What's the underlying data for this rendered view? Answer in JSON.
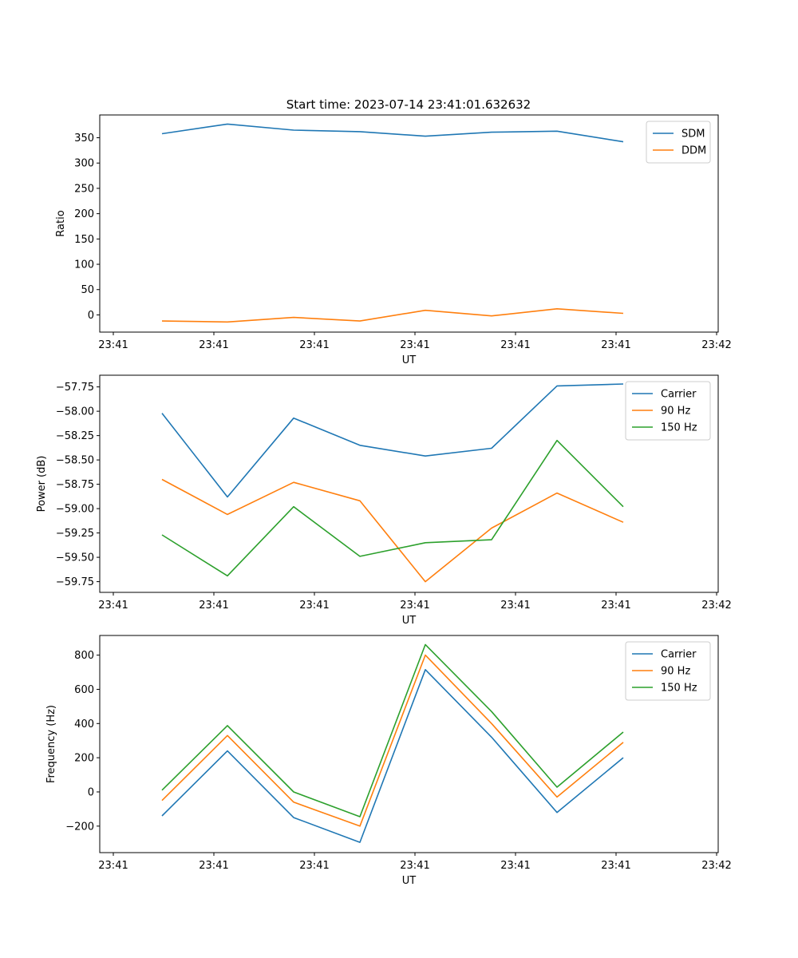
{
  "chart_data": [
    {
      "type": "line",
      "title": "Start time: 2023-07-14 23:41:01.632632",
      "xlabel": "UT",
      "ylabel": "Ratio",
      "x_ticks": [
        "23:41",
        "23:41",
        "23:41",
        "23:41",
        "23:41",
        "23:41",
        "23:42"
      ],
      "ylim": [
        -34,
        395
      ],
      "y_ticks": [
        0,
        50,
        100,
        150,
        200,
        250,
        300,
        350
      ],
      "y_tick_labels": [
        "0",
        "50",
        "100",
        "150",
        "200",
        "250",
        "300",
        "350"
      ],
      "legend": "top-right",
      "series": [
        {
          "name": "SDM",
          "color": "#1f77b4",
          "values": [
            358,
            377,
            365,
            362,
            353,
            361,
            363,
            342
          ]
        },
        {
          "name": "DDM",
          "color": "#ff7f0e",
          "values": [
            -12,
            -14,
            -5,
            -12,
            9,
            -2,
            12,
            3
          ]
        }
      ]
    },
    {
      "type": "line",
      "title": "",
      "xlabel": "UT",
      "ylabel": "Power (dB)",
      "x_ticks": [
        "23:41",
        "23:41",
        "23:41",
        "23:41",
        "23:41",
        "23:41",
        "23:42"
      ],
      "ylim": [
        -59.86,
        -57.63
      ],
      "y_ticks": [
        -59.75,
        -59.5,
        -59.25,
        -59.0,
        -58.75,
        -58.5,
        -58.25,
        -58.0,
        -57.75
      ],
      "y_tick_labels": [
        "−59.75",
        "−59.50",
        "−59.25",
        "−59.00",
        "−58.75",
        "−58.50",
        "−58.25",
        "−58.00",
        "−57.75"
      ],
      "legend": "top-right",
      "series": [
        {
          "name": "Carrier",
          "color": "#1f77b4",
          "values": [
            -58.02,
            -58.88,
            -58.07,
            -58.35,
            -58.46,
            -58.38,
            -57.74,
            -57.72
          ]
        },
        {
          "name": "90 Hz",
          "color": "#ff7f0e",
          "values": [
            -58.7,
            -59.06,
            -58.73,
            -58.92,
            -59.75,
            -59.2,
            -58.84,
            -59.14
          ]
        },
        {
          "name": "150 Hz",
          "color": "#2ca02c",
          "values": [
            -59.27,
            -59.69,
            -58.98,
            -59.49,
            -59.35,
            -59.32,
            -58.3,
            -58.98
          ]
        }
      ]
    },
    {
      "type": "line",
      "title": "",
      "xlabel": "UT",
      "ylabel": "Frequency (Hz)",
      "x_ticks": [
        "23:41",
        "23:41",
        "23:41",
        "23:41",
        "23:41",
        "23:41",
        "23:42"
      ],
      "ylim": [
        -355,
        915
      ],
      "y_ticks": [
        -200,
        0,
        200,
        400,
        600,
        800
      ],
      "y_tick_labels": [
        "−200",
        "0",
        "200",
        "400",
        "600",
        "800"
      ],
      "legend": "top-right",
      "series": [
        {
          "name": "Carrier",
          "color": "#1f77b4",
          "values": [
            -140,
            240,
            -150,
            -295,
            715,
            320,
            -120,
            200
          ]
        },
        {
          "name": "90 Hz",
          "color": "#ff7f0e",
          "values": [
            -50,
            330,
            -60,
            -200,
            800,
            400,
            -30,
            290
          ]
        },
        {
          "name": "150 Hz",
          "color": "#2ca02c",
          "values": [
            10,
            388,
            0,
            -145,
            862,
            470,
            28,
            350
          ]
        }
      ]
    }
  ]
}
